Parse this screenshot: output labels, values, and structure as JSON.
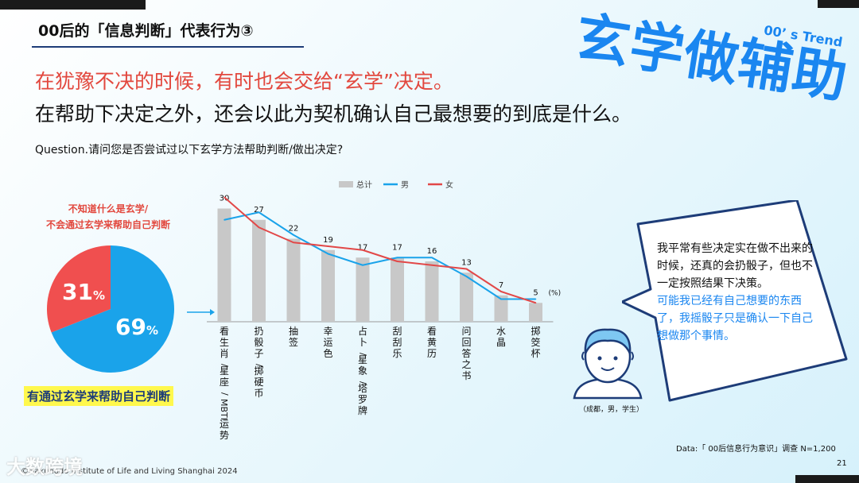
{
  "header": {
    "section_title": "00后的「信息判断」代表行为③",
    "big_title": "玄学做辅助",
    "trend_label": "00’ s Trend"
  },
  "headline": {
    "red": "在犹豫不决的时候，有时也会交给“玄学”决定。",
    "black": "在帮助下决定之外，还会以此为契机确认自己最想要的到底是什么。"
  },
  "question": "Question.请问您是否尝试过以下玄学方法帮助判断/做出决定?",
  "pie": {
    "note_line1": "不知道什么是玄学/",
    "note_line2": "不会通过玄学来帮助自己判断",
    "red_value": "31",
    "blue_value": "69",
    "unit": "%",
    "caption": "有通过玄学来帮助自己判断",
    "colors": {
      "red": "#f04f4f",
      "blue": "#1aa3ea"
    }
  },
  "chart_data": {
    "type": "bar",
    "categories": [
      "看生肖/星座/MBTI运势",
      "扔骰子/掷硬币",
      "抽签",
      "幸运色",
      "占卜/星象/塔罗牌",
      "刮刮乐",
      "看黄历",
      "问回答之书",
      "水晶",
      "掷筊杯"
    ],
    "unit": "(%)",
    "ylim": [
      0,
      32
    ],
    "legend_position": "top",
    "series": [
      {
        "name": "总计",
        "kind": "bar",
        "color": "#c8c8c8",
        "values": [
          30,
          27,
          22,
          19,
          17,
          17,
          16,
          13,
          7,
          5
        ]
      },
      {
        "name": "男",
        "kind": "line",
        "color": "#1aa3ea",
        "values": [
          27,
          29,
          23,
          18,
          15,
          17,
          17,
          12,
          6,
          6
        ]
      },
      {
        "name": "女",
        "kind": "line",
        "color": "#e24848",
        "values": [
          33,
          25,
          21,
          20,
          19,
          16,
          15,
          14,
          8,
          5
        ]
      }
    ]
  },
  "quote": {
    "part1": "我平常有些决定实在做不出来的时候，还真的会扔骰子，但也不一定按照结果下决策。",
    "part2": "可能我已经有自己想要的东西了，我摇骰子只是确认一下自己想做那个事情。",
    "attribution": "（成都，男，学生）"
  },
  "footer": {
    "source": "Data:「 00后信息行为意识」调查 N=1,200",
    "page_number": "21",
    "copyright": "©Hakuhodo Institute of Life and Living Shanghai 2024",
    "watermark": "大数跨境"
  }
}
